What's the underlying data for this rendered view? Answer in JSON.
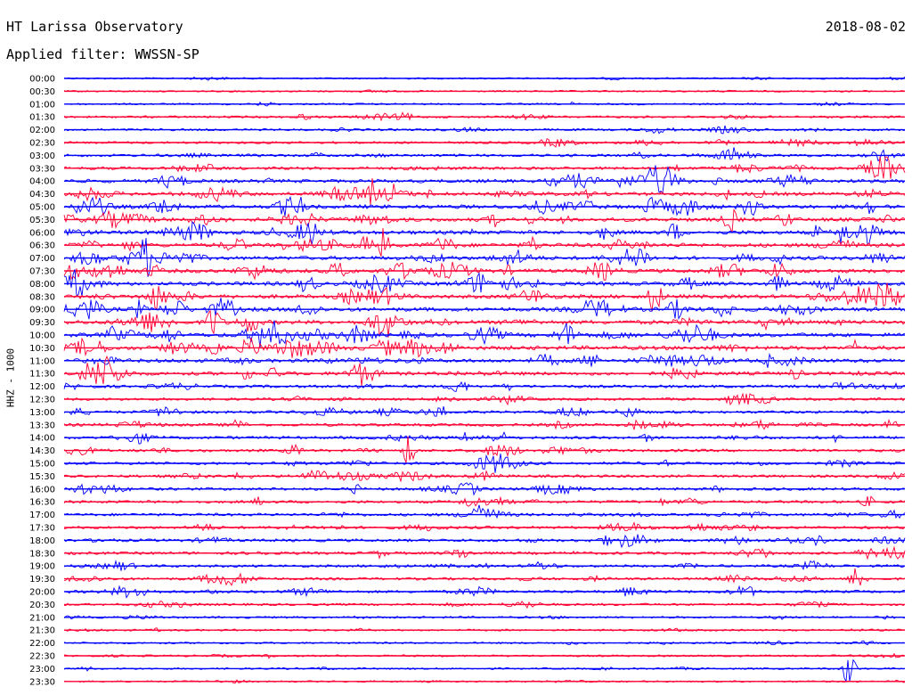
{
  "header": {
    "station": "HT Larissa Observatory",
    "date": "2018-08-02",
    "filter_label": "Applied filter: WWSSN-SP"
  },
  "chart_data": {
    "type": "line",
    "title": "HT Larissa Observatory",
    "ylabel": "HHZ - 1000",
    "time_labels": [
      "00:00",
      "00:30",
      "01:00",
      "01:30",
      "02:00",
      "02:30",
      "03:00",
      "03:30",
      "04:00",
      "04:30",
      "05:00",
      "05:30",
      "06:00",
      "06:30",
      "07:00",
      "07:30",
      "08:00",
      "08:30",
      "09:00",
      "09:30",
      "10:00",
      "10:30",
      "11:00",
      "11:30",
      "12:00",
      "12:30",
      "13:00",
      "13:30",
      "14:00",
      "14:30",
      "15:00",
      "15:30",
      "16:00",
      "16:30",
      "17:00",
      "17:30",
      "18:00",
      "18:30",
      "19:00",
      "19:30",
      "20:00",
      "20:30",
      "21:00",
      "21:30",
      "22:00",
      "22:30",
      "23:00",
      "23:30"
    ],
    "trace_colors": [
      "#0000ff",
      "#ff0033"
    ],
    "x_range_minutes": [
      0,
      30
    ],
    "activity_by_row": [
      0.15,
      0.15,
      0.2,
      0.35,
      0.35,
      0.4,
      0.55,
      0.6,
      0.8,
      0.85,
      0.95,
      0.9,
      0.95,
      0.95,
      0.9,
      0.95,
      0.95,
      0.95,
      1.0,
      1.0,
      1.0,
      1.0,
      0.9,
      0.8,
      0.6,
      0.5,
      0.55,
      0.55,
      0.6,
      0.55,
      0.55,
      0.55,
      0.55,
      0.55,
      0.55,
      0.55,
      0.6,
      0.55,
      0.5,
      0.5,
      0.55,
      0.4,
      0.3,
      0.25,
      0.2,
      0.25,
      0.2,
      0.15
    ],
    "grid": false
  }
}
